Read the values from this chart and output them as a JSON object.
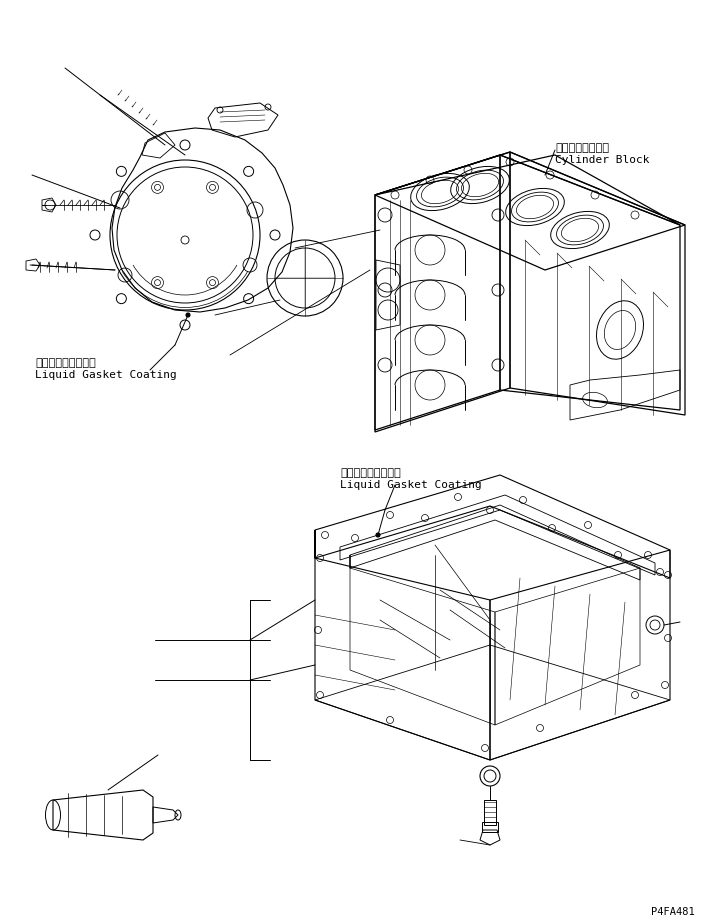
{
  "background_color": "#ffffff",
  "page_id": "P4FA481",
  "text_color": "#000000",
  "line_color": "#000000",
  "labels": {
    "cylinder_block_jp": "シリンダブロック",
    "cylinder_block_en": "Cylinder Block",
    "liquid_gasket_jp": "液状ガスケット塗布",
    "liquid_gasket_en": "Liquid Gasket Coating",
    "liquid_gasket2_jp": "液状ガスケット塗布",
    "liquid_gasket2_en": "Liquid Gasket Coating"
  },
  "figsize": [
    7.15,
    9.21
  ],
  "dpi": 100
}
